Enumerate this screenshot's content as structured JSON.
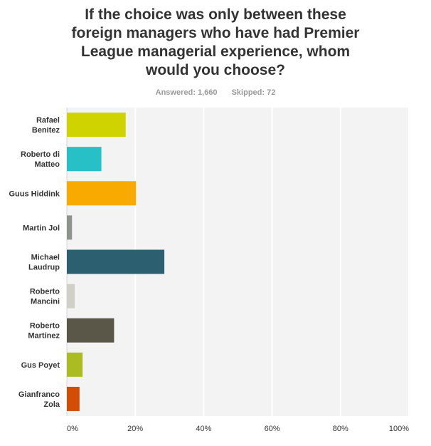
{
  "title_lines": [
    "If the choice was only between these",
    "foreign managers who have had Premier",
    "League managerial experience, whom",
    "would you choose?"
  ],
  "stats": {
    "answered_label": "Answered:",
    "answered": "1,660",
    "skipped_label": "Skipped:",
    "skipped": "72"
  },
  "chart_data": {
    "type": "bar",
    "orientation": "horizontal",
    "categories": [
      [
        "Rafael",
        "Benitez"
      ],
      [
        "Roberto di",
        "Matteo"
      ],
      [
        "Guus Hiddink"
      ],
      [
        "Martin Jol"
      ],
      [
        "Michael",
        "Laudrup"
      ],
      [
        "Roberto",
        "Mancini"
      ],
      [
        "Roberto",
        "Martinez"
      ],
      [
        "Gus Poyet"
      ],
      [
        "Gianfranco",
        "Zola"
      ]
    ],
    "values": [
      17.2,
      10.1,
      20.2,
      1.5,
      28.5,
      2.3,
      13.8,
      4.6,
      3.7
    ],
    "colors": [
      "#cfd300",
      "#26c0c6",
      "#f8aa00",
      "#8e948c",
      "#2c5f6f",
      "#d0d0c4",
      "#5a5648",
      "#aabc22",
      "#d24d06"
    ],
    "xlim": [
      0,
      100
    ],
    "xticks": [
      0,
      20,
      40,
      60,
      80,
      100
    ],
    "xtick_labels": [
      "0%",
      "20%",
      "40%",
      "60%",
      "80%",
      "100%"
    ],
    "grid": true
  }
}
